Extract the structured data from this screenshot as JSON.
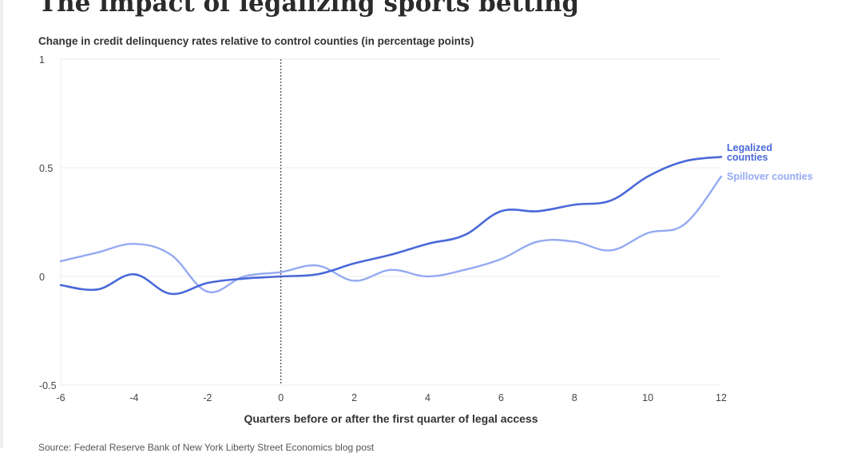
{
  "header": {
    "title": "The impact of legalizing sports betting",
    "subtitle": "Change in credit delinquency rates relative to control counties (in percentage points)"
  },
  "footer": {
    "source": "Source: Federal Reserve Bank of New York Liberty Street Economics blog post"
  },
  "chart_data": {
    "type": "line",
    "title": "The impact of legalizing sports betting",
    "subtitle": "Change in credit delinquency rates relative to control counties (in percentage points)",
    "xlabel": "Quarters before or after the first quarter of legal access",
    "ylabel": "",
    "xlim": [
      -6,
      12
    ],
    "ylim": [
      -0.5,
      1
    ],
    "xticks": [
      -6,
      -4,
      -2,
      0,
      2,
      4,
      6,
      8,
      10,
      12
    ],
    "yticks": [
      -0.5,
      0,
      0.5,
      1
    ],
    "ytick_labels": [
      "-0.5",
      "0",
      "0.5",
      "1"
    ],
    "grid": "horizontal",
    "reference_line_x": 0,
    "legend": "direct labels at line ends",
    "x": [
      -6,
      -5,
      -4,
      -3,
      -2,
      -1,
      0,
      1,
      2,
      3,
      4,
      5,
      6,
      7,
      8,
      9,
      10,
      11,
      12
    ],
    "series": [
      {
        "name": "Legalized counties",
        "label_lines": [
          "Legalized",
          "counties"
        ],
        "color": "#4a68d9",
        "values": [
          -0.04,
          -0.06,
          0.01,
          -0.08,
          -0.03,
          -0.01,
          0.0,
          0.01,
          0.06,
          0.1,
          0.15,
          0.19,
          0.3,
          0.3,
          0.33,
          0.35,
          0.46,
          0.53,
          0.55
        ]
      },
      {
        "name": "Spillover counties",
        "label_lines": [
          "Spillover counties"
        ],
        "color": "#94aaf2",
        "values": [
          0.07,
          0.11,
          0.15,
          0.1,
          -0.07,
          0.0,
          0.02,
          0.05,
          -0.02,
          0.03,
          0.0,
          0.03,
          0.08,
          0.16,
          0.16,
          0.12,
          0.2,
          0.24,
          0.46
        ]
      }
    ]
  }
}
